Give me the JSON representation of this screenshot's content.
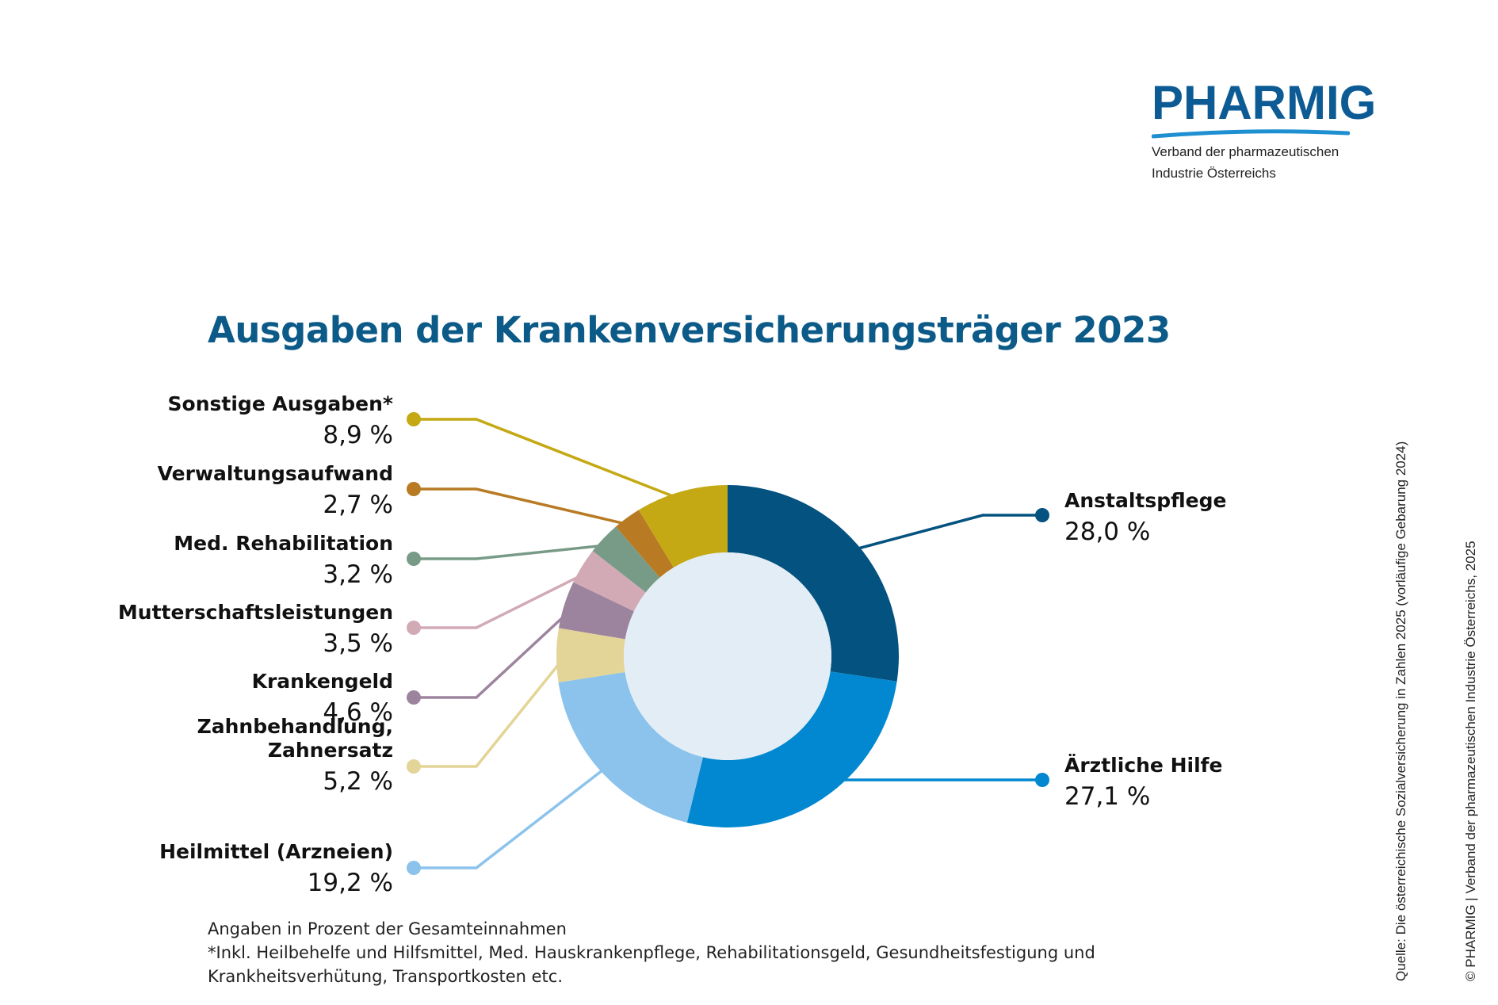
{
  "logo": {
    "name": "PHARMIG",
    "subtitle_line1": "Verband der pharmazeutischen",
    "subtitle_line2": "Industrie Österreichs",
    "color": "#0d5b94",
    "accent": "#1e8fd0"
  },
  "chart_data": {
    "type": "pie",
    "title": "Ausgaben der Krankenversicherungsträger 2023",
    "donut": true,
    "hole_color": "#e3edf5",
    "slices": [
      {
        "label": "Anstaltspflege",
        "value": 28.0,
        "value_label": "28,0 %",
        "color": "#04527f"
      },
      {
        "label": "Ärztliche Hilfe",
        "value": 27.1,
        "value_label": "27,1 %",
        "color": "#0288d1"
      },
      {
        "label": "Heilmittel (Arzneien)",
        "value": 19.2,
        "value_label": "19,2 %",
        "color": "#8bc3ec"
      },
      {
        "label": "Zahnbehandlung, Zahnersatz",
        "label_lines": [
          "Zahnbehandlung,",
          "Zahnersatz"
        ],
        "value": 5.2,
        "value_label": "5,2 %",
        "color": "#e3d497"
      },
      {
        "label": "Krankengeld",
        "value": 4.6,
        "value_label": "4,6 %",
        "color": "#9d849e"
      },
      {
        "label": "Mutterschaftsleistungen",
        "value": 3.5,
        "value_label": "3,5 %",
        "color": "#d2aab6"
      },
      {
        "label": "Med. Rehabilitation",
        "value": 3.2,
        "value_label": "3,2 %",
        "color": "#789b87"
      },
      {
        "label": "Verwaltungsaufwand",
        "value": 2.7,
        "value_label": "2,7 %",
        "color": "#b87b24"
      },
      {
        "label": "Sonstige Ausgaben*",
        "value": 8.9,
        "value_label": "8,9 %",
        "color": "#c4a914"
      }
    ]
  },
  "footnote": {
    "line1": "Angaben in Prozent der Gesamteinnahmen",
    "line2": "*Inkl. Heilbehelfe und Hilfsmittel, Med. Hauskrankenpflege, Rehabilitationsgeld, Gesundheitsfestigung und Krankheitsverhütung, Transportkosten etc."
  },
  "source": "Quelle: Die österreichische Sozialversicherung in Zahlen 2025 (vorläufige Gebarung 2024)",
  "copyright": "© PHARMIG | Verband der pharmazeutischen Industrie Österreichs, 2025"
}
